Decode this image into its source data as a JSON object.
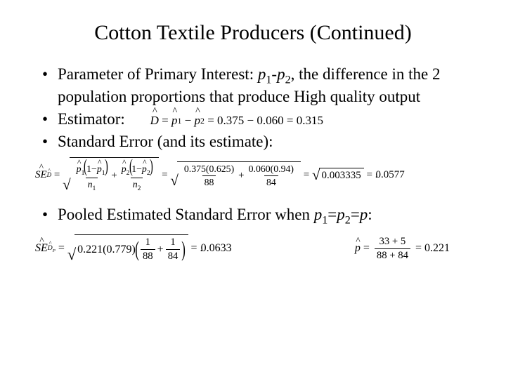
{
  "title": "Cotton Textile Producers (Continued)",
  "bullets": {
    "b1_pre": "Parameter of Primary Interest: ",
    "b1_param": "p",
    "b1_sub1": "1",
    "b1_dash": "-",
    "b1_sub2": "2",
    "b1_post": ", the difference in the 2 population proportions that produce High quality output",
    "b2": "Estimator:",
    "b3": "Standard Error (and its estimate):",
    "b4_pre": "Pooled Estimated Standard Error when ",
    "b4_p": "p",
    "b4_s1": "1",
    "b4_eq": "=",
    "b4_s2": "2",
    "b4_post": ":"
  },
  "estimator": {
    "D": "D",
    "p": "p",
    "s1": "1",
    "s2": "2",
    "v1": "0.375",
    "v2": "0.060",
    "res": "0.315"
  },
  "se": {
    "label": "SE",
    "sub": "D",
    "p": "p",
    "one": "1",
    "s1": "1",
    "s2": "2",
    "n": "n",
    "num1": "0.375(0.625)",
    "den1": "88",
    "num2": "0.060(0.94)",
    "den2": "84",
    "mid": "0.003335",
    "res": "0.0577"
  },
  "pooled": {
    "label": "SE",
    "subD": "D",
    "subP": "P",
    "v1": "0.221",
    "v2": "0.779",
    "d1": "88",
    "d2": "84",
    "res": "0.0633",
    "phat": "p",
    "pnum": "33 + 5",
    "pden": "88 + 84",
    "pres": "0.221"
  }
}
